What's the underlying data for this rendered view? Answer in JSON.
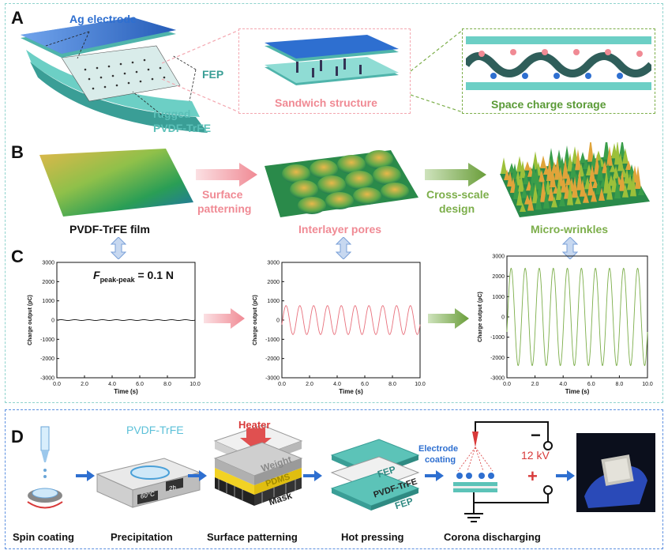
{
  "panelA": {
    "letter": "A",
    "ag_electrode": "Ag electrode",
    "fep": "FEP",
    "rugged": "rugged",
    "pvdf_trfe": "PVDF-TrFE",
    "sandwich": "Sandwich structure",
    "space_charge": "Space charge storage"
  },
  "panelB": {
    "letter": "B",
    "film": "PVDF-TrFE film",
    "surface1": "Surface",
    "surface2": "patterning",
    "pores": "Interlayer pores",
    "cross1": "Cross-scale",
    "cross2": "design",
    "wrinkles": "Micro-wrinkles"
  },
  "panelC": {
    "letter": "C",
    "annotation_F": "F",
    "annotation_sub": "peak-peak",
    "annotation_val": " = 0.1 N"
  },
  "panelD": {
    "letter": "D",
    "pvdf_label": "PVDF-TrFE",
    "temp": "60°C",
    "time": "2h",
    "heater": "Heater",
    "weight": "Weight",
    "pdms": "PDMS",
    "mask": "Mask",
    "fep_top": "FEP",
    "pvdf_mid": "PVDF-TrFE",
    "fep_bot": "FEP",
    "electrode1": "Electrode",
    "electrode2": "coating",
    "voltage": "12 kV",
    "minus": "−",
    "plus": "+",
    "steps": [
      "Spin coating",
      "Precipitation",
      "Surface patterning",
      "Hot pressing",
      "Corona discharging"
    ]
  },
  "colors": {
    "teal": "#5bc0b8",
    "pink": "#f08a94",
    "green": "#7cae4a",
    "blue": "#2e6fd0"
  },
  "chart_data": [
    {
      "type": "line",
      "ylabel": "Charge output (pC)",
      "xlabel": "Time (s)",
      "xlim": [
        0,
        10
      ],
      "ylim": [
        -3000,
        3000
      ],
      "xticks": [
        "0.0",
        "2.0",
        "4.0",
        "6.0",
        "8.0",
        "10.0"
      ],
      "yticks": [
        "3000",
        "2000",
        "1000",
        "0",
        "-1000",
        "-2000",
        "-3000"
      ],
      "series": [
        {
          "amplitude": 20,
          "cycles": 10,
          "color": "#111111"
        }
      ]
    },
    {
      "type": "line",
      "ylabel": "Charge output (pC)",
      "xlabel": "Time (s)",
      "xlim": [
        0,
        10
      ],
      "ylim": [
        -3000,
        3000
      ],
      "xticks": [
        "0.0",
        "2.0",
        "4.0",
        "6.0",
        "8.0",
        "10.0"
      ],
      "yticks": [
        "3000",
        "2000",
        "1000",
        "0",
        "-1000",
        "-2000",
        "-3000"
      ],
      "series": [
        {
          "amplitude": 750,
          "cycles": 10,
          "color": "#e8707c"
        }
      ]
    },
    {
      "type": "line",
      "ylabel": "Charge output (pC)",
      "xlabel": "Time (s)",
      "xlim": [
        0,
        10
      ],
      "ylim": [
        -3000,
        3000
      ],
      "xticks": [
        "0.0",
        "2.0",
        "4.0",
        "6.0",
        "8.0",
        "10.0"
      ],
      "yticks": [
        "3000",
        "2000",
        "1000",
        "0",
        "-1000",
        "-2000",
        "-3000"
      ],
      "series": [
        {
          "amplitude": 2400,
          "cycles": 10,
          "color": "#7cae4a"
        }
      ]
    }
  ]
}
